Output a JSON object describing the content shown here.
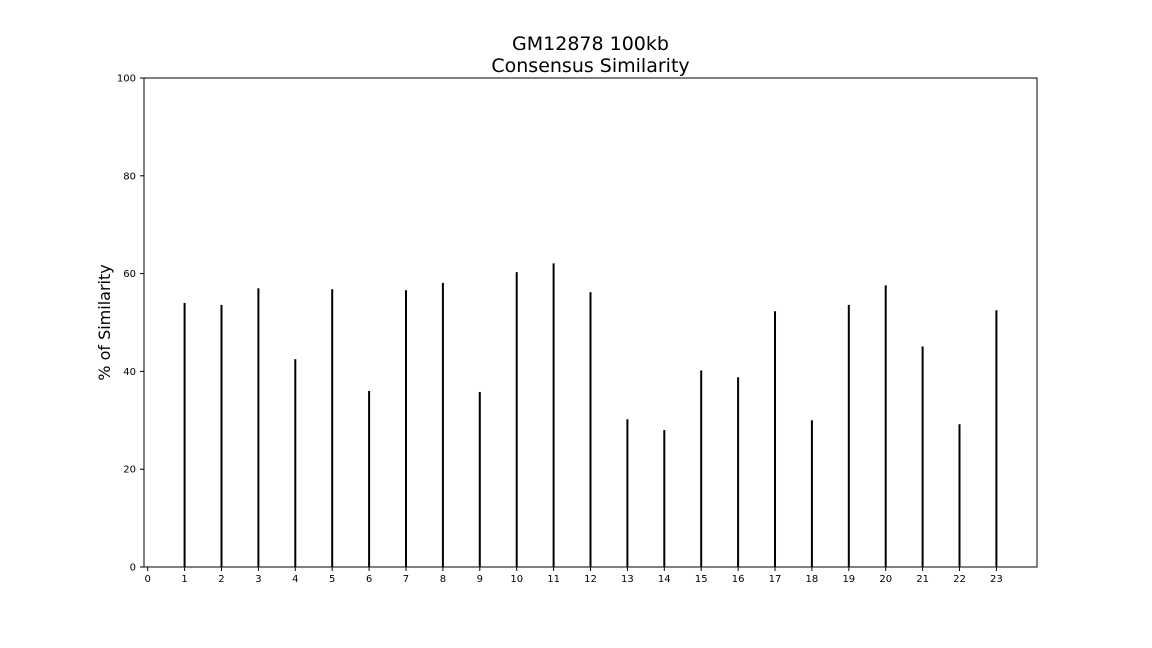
{
  "chart_data": {
    "type": "bar",
    "title": [
      "GM12878 100kb",
      "Consensus Similarity"
    ],
    "xlabel": "",
    "ylabel": "% of Similarity",
    "xlim": [
      -0.1,
      24.1
    ],
    "ylim": [
      0,
      100
    ],
    "x_ticks": [
      0,
      1,
      2,
      3,
      4,
      5,
      6,
      7,
      8,
      9,
      10,
      11,
      12,
      13,
      14,
      15,
      16,
      17,
      18,
      19,
      20,
      21,
      22,
      23
    ],
    "y_ticks": [
      0,
      20,
      40,
      60,
      80,
      100
    ],
    "categories": [
      1,
      2,
      3,
      4,
      5,
      6,
      7,
      8,
      9,
      10,
      11,
      12,
      13,
      14,
      15,
      16,
      17,
      18,
      19,
      20,
      21,
      22,
      23
    ],
    "values": [
      54,
      53.6,
      57,
      42.5,
      56.8,
      36,
      56.6,
      58.1,
      35.8,
      60.3,
      62.1,
      56.2,
      30.2,
      28,
      40.2,
      38.8,
      52.3,
      30,
      53.6,
      57.6,
      45.1,
      29.2,
      52.5
    ],
    "grid": false,
    "bar_color": "#000000"
  }
}
